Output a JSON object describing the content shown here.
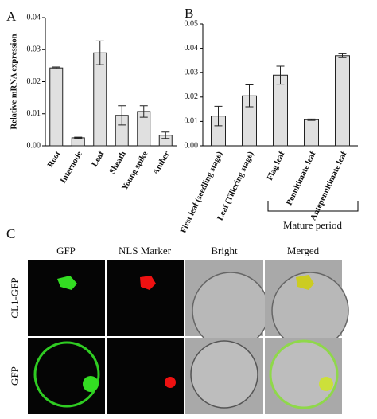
{
  "chart_data": [
    {
      "type": "bar",
      "panel_label": "A",
      "y_label": "Relative mRNA expression",
      "categories": [
        "Root",
        "Internode",
        "Leaf",
        "Sheath",
        "Young spike",
        "Anther"
      ],
      "values": [
        0.0243,
        0.0025,
        0.029,
        0.0095,
        0.0107,
        0.0033
      ],
      "errors": [
        0.0003,
        0.0002,
        0.0037,
        0.003,
        0.0018,
        0.001
      ],
      "color": "#e0e0e0",
      "ylim": [
        0,
        0.04
      ],
      "yticks": [
        {
          "value": 0,
          "label": "0.00"
        },
        0.01,
        0.02,
        0.03,
        0.04
      ]
    },
    {
      "type": "bar",
      "panel_label": "B",
      "categories": [
        "First leaf (seedling stage)",
        "Leaf (Tillering stage)",
        "Flag leaf",
        "Penultimate leaf",
        "Antepenultimate leaf"
      ],
      "values": [
        0.0122,
        0.0205,
        0.029,
        0.0107,
        0.037
      ],
      "errors": [
        0.004,
        0.0045,
        0.0037,
        0.0003,
        0.0008
      ],
      "color": "#e0e0e0",
      "ylim": [
        0,
        0.05
      ],
      "yticks": [
        {
          "value": 0,
          "label": "0.00"
        },
        0.01,
        0.02,
        0.03,
        0.04,
        0.05
      ],
      "annotation": "Mature period"
    }
  ],
  "panel_c": {
    "label": "C",
    "columns": [
      "GFP",
      "NLS Marker",
      "Bright",
      "Merged"
    ],
    "rows": [
      "CL1-GFP",
      "GFP"
    ]
  }
}
